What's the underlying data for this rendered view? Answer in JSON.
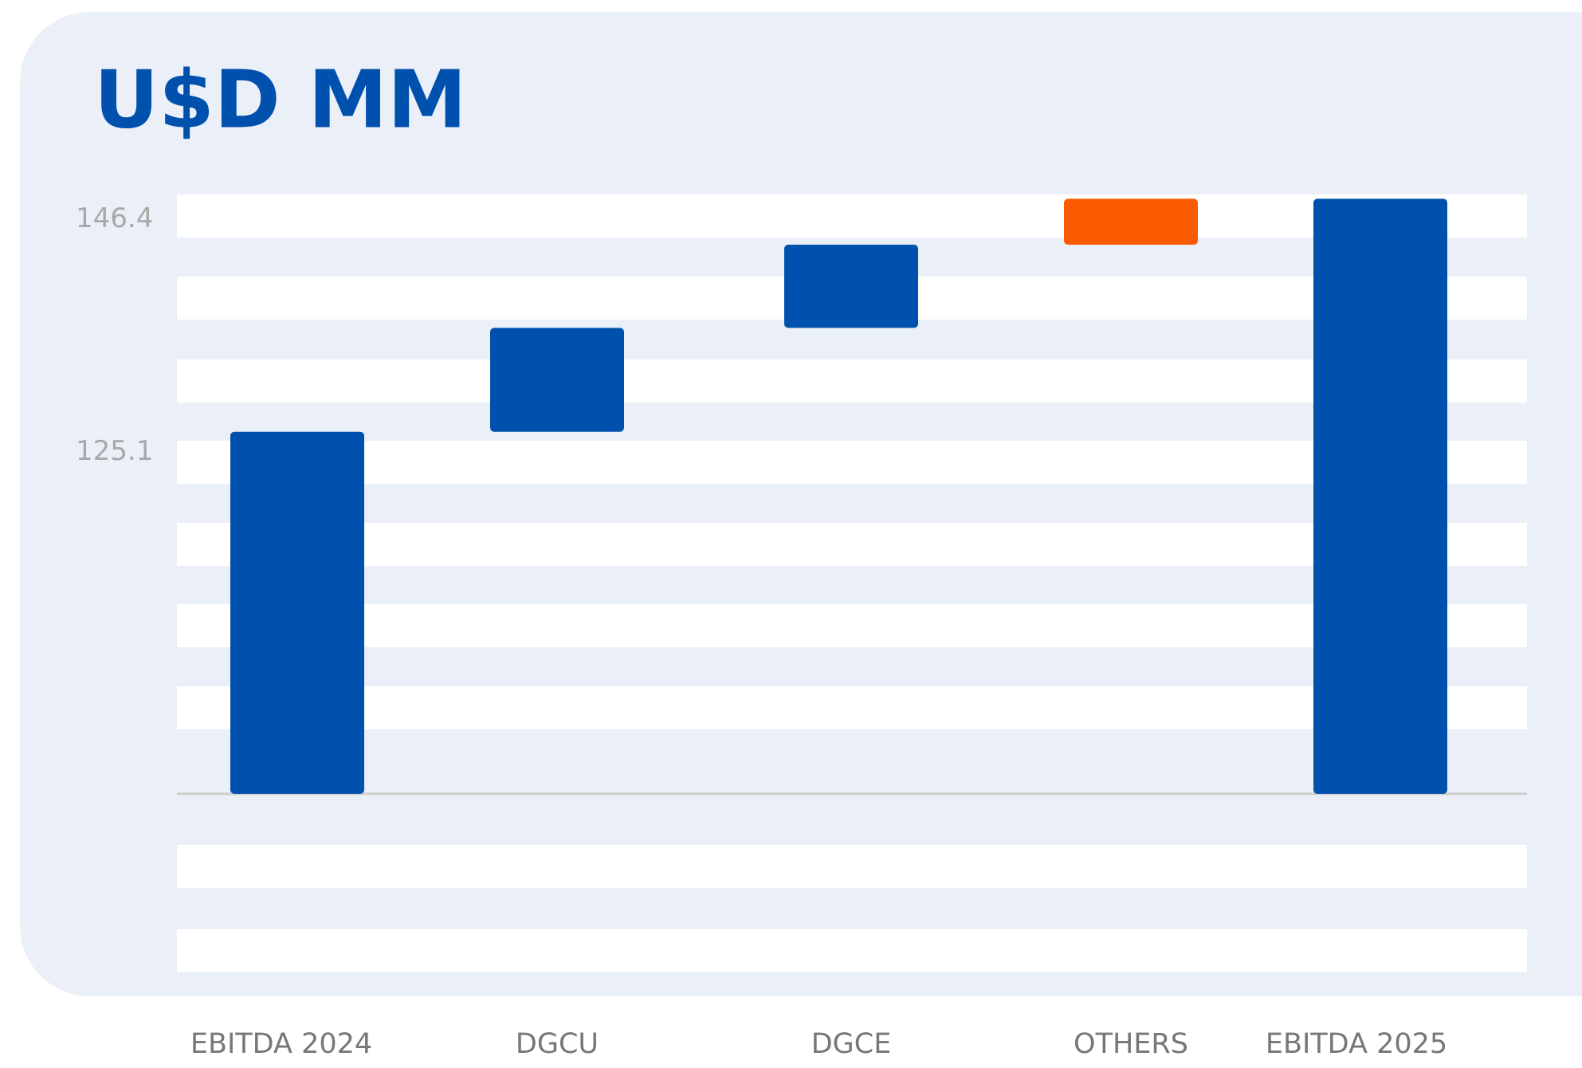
{
  "chart_data": {
    "type": "waterfall",
    "title": "U$D MM",
    "categories": [
      "EBITDA 2024",
      "DGCU",
      "DGCE",
      "OTHERS",
      "EBITDA 2025"
    ],
    "values": [
      125.1,
      9.5,
      7.6,
      4.2,
      146.4
    ],
    "measure": [
      "absolute",
      "relative",
      "relative",
      "relative",
      "absolute"
    ],
    "colors": [
      "#0050ae",
      "#0050ae",
      "#0050ae",
      "#fa5a00",
      "#0050ae"
    ],
    "ylim": [
      92,
      150
    ],
    "yticks": [
      125.1,
      146.4
    ]
  }
}
